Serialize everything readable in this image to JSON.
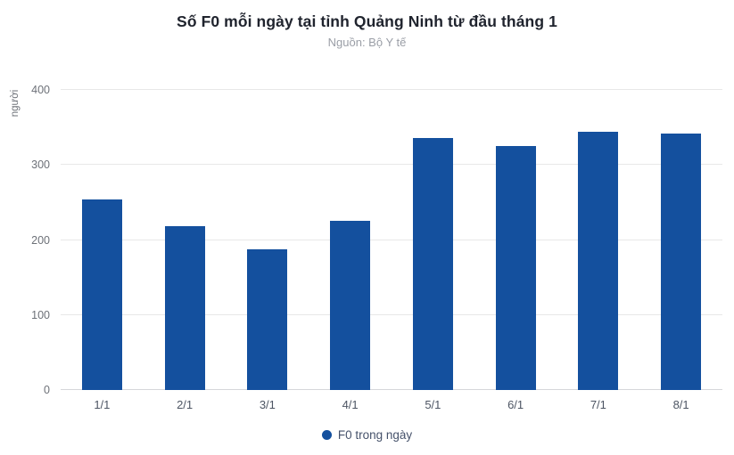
{
  "header": {
    "title": "Số F0 mỗi ngày tại tỉnh Quảng Ninh từ đầu tháng 1",
    "subtitle": "Nguồn: Bộ Y tế"
  },
  "chart_data": {
    "type": "bar",
    "title": "Số F0 mỗi ngày tại tỉnh Quảng Ninh từ đầu tháng 1",
    "subtitle": "Nguồn: Bộ Y tế",
    "categories": [
      "1/1",
      "2/1",
      "3/1",
      "4/1",
      "5/1",
      "6/1",
      "7/1",
      "8/1"
    ],
    "series": [
      {
        "name": "F0 trong ngày",
        "values": [
          254,
          219,
          188,
          226,
          336,
          325,
          344,
          342
        ],
        "color": "#14509e"
      }
    ],
    "xlabel": "",
    "ylabel": "người",
    "ylim": [
      0,
      400
    ],
    "yticks": [
      0,
      100,
      200,
      300,
      400
    ],
    "grid": true,
    "legend_position": "bottom"
  },
  "legend": {
    "label": "F0 trong ngày",
    "marker_color": "#14509e"
  },
  "colors": {
    "bar": "#14509e",
    "gridline": "#e8e8e8",
    "axis_line": "#d5d7da",
    "title": "#20242e",
    "subtitle": "#9a9ea6",
    "tick_label": "#6d7178",
    "x_label": "#4d5563"
  }
}
